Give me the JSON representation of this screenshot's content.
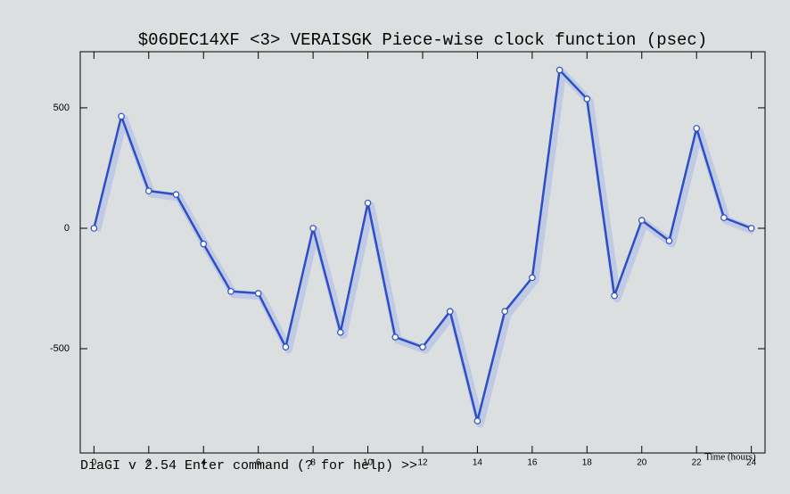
{
  "chart_data": {
    "type": "line",
    "title": "$06DEC14XF <3>  VERAISGK  Piece-wise clock function (psec)",
    "x_label": "Time (hours)",
    "status": "DiaGI v 2.54  Enter command (? for help) >>",
    "x": [
      0,
      1,
      2,
      3,
      4,
      5,
      6,
      7,
      8,
      9,
      10,
      11,
      12,
      13,
      14,
      15,
      16,
      17,
      18,
      19,
      20,
      21,
      22,
      23,
      24
    ],
    "series": [
      {
        "color": "#2c4fc6",
        "values": [
          0,
          465,
          155,
          140,
          -65,
          -262,
          -270,
          -493,
          0,
          -432,
          105,
          -452,
          -493,
          -345,
          -800,
          -345,
          -205,
          657,
          537,
          -280,
          33,
          -52,
          415,
          44,
          0
        ]
      }
    ],
    "xlim": [
      -0.5,
      24.5
    ],
    "xticks": [
      0,
      2,
      4,
      6,
      8,
      10,
      12,
      14,
      16,
      18,
      20,
      22,
      24
    ],
    "ylim": [
      -933,
      733
    ],
    "yticks": [
      500,
      0,
      -500
    ]
  }
}
